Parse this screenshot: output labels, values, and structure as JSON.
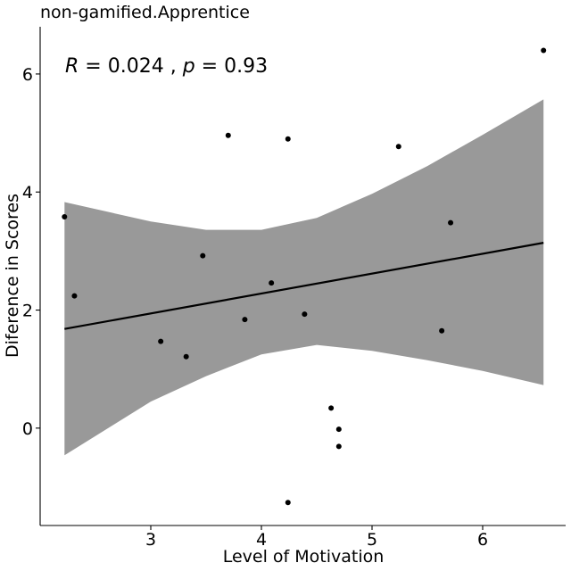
{
  "chart_data": {
    "type": "scatter",
    "title": "non-gamified.Apprentice",
    "xlabel": "Level of Motivation",
    "ylabel": "Diference in Scores",
    "xlim": [
      2.0,
      6.75
    ],
    "ylim": [
      -1.65,
      6.8
    ],
    "x_ticks": [
      3,
      4,
      5,
      6
    ],
    "y_ticks": [
      0,
      2,
      4,
      6
    ],
    "grid": false,
    "legend": "none",
    "annotation": {
      "r_label": "R",
      "r_value": "= 0.024 ,",
      "p_label": "p",
      "p_value": "= 0.93"
    },
    "points": [
      {
        "x": 2.22,
        "y": 3.58
      },
      {
        "x": 2.31,
        "y": 2.24
      },
      {
        "x": 3.09,
        "y": 1.47
      },
      {
        "x": 3.32,
        "y": 1.21
      },
      {
        "x": 3.47,
        "y": 2.92
      },
      {
        "x": 3.7,
        "y": 4.96
      },
      {
        "x": 3.85,
        "y": 1.84
      },
      {
        "x": 4.09,
        "y": 2.46
      },
      {
        "x": 4.24,
        "y": 4.9
      },
      {
        "x": 4.24,
        "y": -1.26
      },
      {
        "x": 4.39,
        "y": 1.93
      },
      {
        "x": 4.63,
        "y": 0.34
      },
      {
        "x": 4.7,
        "y": -0.02
      },
      {
        "x": 4.7,
        "y": -0.31
      },
      {
        "x": 5.24,
        "y": 4.77
      },
      {
        "x": 5.63,
        "y": 1.65
      },
      {
        "x": 5.71,
        "y": 3.48
      },
      {
        "x": 6.55,
        "y": 6.4
      }
    ],
    "regression": {
      "x": [
        2.22,
        6.55
      ],
      "y": [
        1.68,
        3.14
      ]
    },
    "confidence_band": {
      "x": [
        2.22,
        3.0,
        3.5,
        4.0,
        4.5,
        5.0,
        5.5,
        6.0,
        6.55
      ],
      "upper": [
        3.83,
        3.5,
        3.36,
        3.36,
        3.56,
        3.97,
        4.44,
        4.97,
        5.57
      ],
      "lower": [
        -0.46,
        0.45,
        0.88,
        1.25,
        1.41,
        1.31,
        1.15,
        0.97,
        0.73
      ]
    },
    "colors": {
      "band": "#999999",
      "line": "#000000",
      "point": "#000000",
      "axis": "#000000"
    }
  }
}
